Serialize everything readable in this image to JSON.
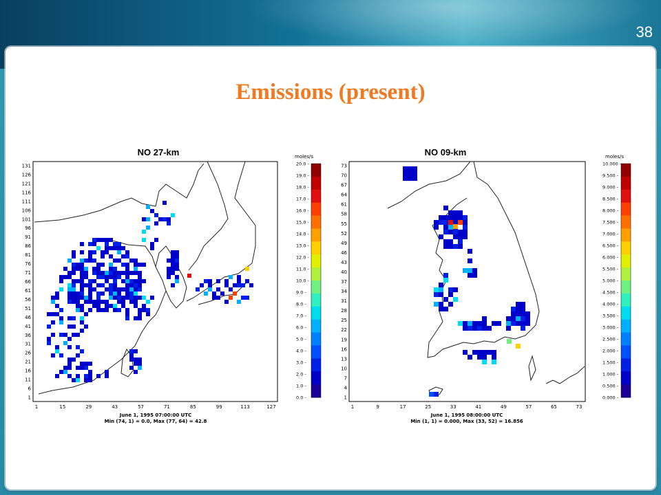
{
  "slide": {
    "number": "38",
    "title": "Emissions  (present)"
  },
  "colors": {
    "title": "#f07a22",
    "scale": [
      "#1a0096",
      "#0000c8",
      "#0020e6",
      "#0050ff",
      "#0080ff",
      "#00b0ff",
      "#00dcf0",
      "#30f0c0",
      "#70f080",
      "#b0f040",
      "#e0f000",
      "#ffd000",
      "#ffa000",
      "#ff7000",
      "#ff4000",
      "#e01010",
      "#c00000",
      "#900000"
    ]
  },
  "panels": [
    {
      "title": "NO 27-km",
      "unit": "moles/s",
      "yticks": [
        "131",
        "126",
        "121",
        "116",
        "111",
        "106",
        "101",
        "96",
        "91",
        "86",
        "81",
        "76",
        "71",
        "66",
        "61",
        "56",
        "51",
        "46",
        "41",
        "36",
        "31",
        "26",
        "21",
        "16",
        "11",
        "6",
        "1"
      ],
      "xticks": [
        "1",
        "15",
        "29",
        "43",
        "57",
        "71",
        "85",
        "99",
        "113",
        "127"
      ],
      "scale_labels": [
        "20.0",
        "19.0",
        "18.0",
        "17.0",
        "16.0",
        "15.0",
        "14.0",
        "13.0",
        "12.0",
        "11.0",
        "10.0",
        "9.0",
        "8.0",
        "7.0",
        "6.0",
        "5.0",
        "4.0",
        "3.0",
        "2.0",
        "1.0",
        "0.0"
      ],
      "footer_date": "June 1, 1995 07:00:00 UTC",
      "footer_minmax": "Min (74, 1) = 0.0, Max (77, 64) = 42.8"
    },
    {
      "title": "NO 09-km",
      "unit": "moles/s",
      "yticks": [
        "73",
        "70",
        "67",
        "64",
        "61",
        "58",
        "55",
        "52",
        "49",
        "46",
        "43",
        "40",
        "37",
        "34",
        "31",
        "28",
        "25",
        "22",
        "19",
        "16",
        "13",
        "10",
        "7",
        "4",
        "1"
      ],
      "xticks": [
        "1",
        "9",
        "17",
        "25",
        "33",
        "41",
        "49",
        "57",
        "65",
        "73"
      ],
      "scale_labels": [
        "10.000",
        "9.500",
        "9.000",
        "8.500",
        "8.000",
        "7.500",
        "7.000",
        "6.500",
        "6.000",
        "5.500",
        "5.000",
        "4.500",
        "4.000",
        "3.500",
        "3.000",
        "2.500",
        "2.000",
        "1.500",
        "1.000",
        "0.500",
        "0.000"
      ],
      "footer_date": "June 1, 1995 08:00:00 UTC",
      "footer_minmax": "Min (1, 1) = 0.000, Max (33, 52) = 16.856"
    }
  ]
}
